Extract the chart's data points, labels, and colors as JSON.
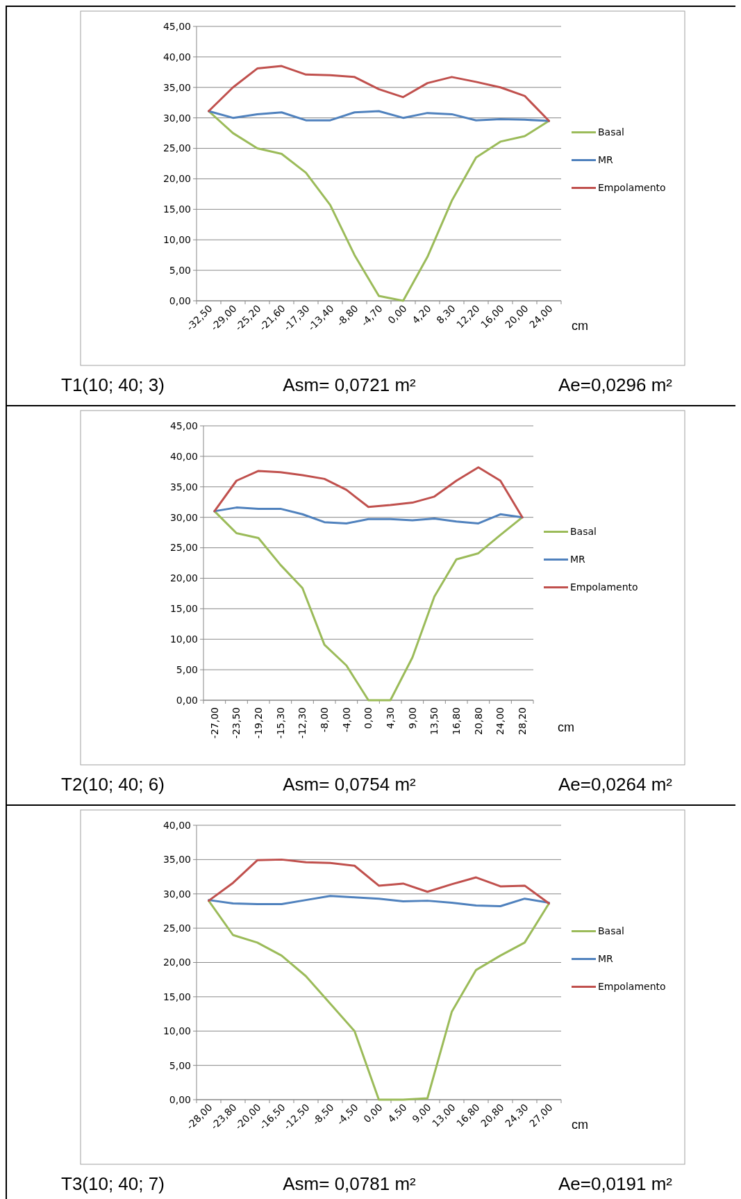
{
  "chart_data": [
    {
      "type": "line",
      "categories": [
        "-32,50",
        "-29,00",
        "-25,20",
        "-21,60",
        "-17,30",
        "-13,40",
        "-8,80",
        "-4,70",
        "0,00",
        "4,20",
        "8,30",
        "12,20",
        "16,00",
        "20,00",
        "24,00"
      ],
      "xlabel": "cm",
      "ylim": [
        0,
        45
      ],
      "yticks": [
        {
          "value": 0,
          "label": "0,00"
        },
        {
          "value": 5,
          "label": "5,00"
        },
        {
          "value": 10,
          "label": "10,00"
        },
        {
          "value": 15,
          "label": "15,00"
        },
        {
          "value": 20,
          "label": "20,00"
        },
        {
          "value": 25,
          "label": "25,00"
        },
        {
          "value": 30,
          "label": "30,00"
        },
        {
          "value": 35,
          "label": "35,00"
        },
        {
          "value": 40,
          "label": "40,00"
        },
        {
          "value": 45,
          "label": "45,00"
        }
      ],
      "grid": "y",
      "legend": "right",
      "marker": "none",
      "line_style": "solid",
      "series": [
        {
          "name": "Basal",
          "color": "#9bbb59",
          "values": [
            31.1,
            27.5,
            25.0,
            24.1,
            21.0,
            15.7,
            7.5,
            0.8,
            0.0,
            7.2,
            16.4,
            23.5,
            26.1,
            27.0,
            29.5
          ]
        },
        {
          "name": "MR",
          "color": "#4f81bd",
          "values": [
            31.1,
            30.0,
            30.6,
            30.9,
            29.6,
            29.6,
            30.9,
            31.1,
            30.0,
            30.8,
            30.6,
            29.6,
            29.8,
            29.7,
            29.5
          ]
        },
        {
          "name": "Empolamento",
          "color": "#c0504d",
          "values": [
            31.1,
            35.0,
            38.1,
            38.5,
            37.1,
            37.0,
            36.7,
            34.7,
            33.4,
            35.7,
            36.7,
            35.9,
            35.0,
            33.6,
            29.5
          ]
        }
      ],
      "annotations": [
        "T1(10; 40; 3)",
        "Asm= 0,0721 m²",
        "Ae=0,0296 m²"
      ]
    },
    {
      "type": "line",
      "categories": [
        "-27,00",
        "-23,50",
        "-19,20",
        "-15,30",
        "-12,30",
        "-8,00",
        "-4,00",
        "0,00",
        "4,30",
        "9,00",
        "13,50",
        "16,80",
        "20,80",
        "24,00",
        "28,20"
      ],
      "xlabel": "cm",
      "ylim": [
        0,
        45
      ],
      "yticks": [
        {
          "value": 0,
          "label": "0,00"
        },
        {
          "value": 5,
          "label": "5,00"
        },
        {
          "value": 10,
          "label": "10,00"
        },
        {
          "value": 15,
          "label": "15,00"
        },
        {
          "value": 20,
          "label": "20,00"
        },
        {
          "value": 25,
          "label": "25,00"
        },
        {
          "value": 30,
          "label": "30,00"
        },
        {
          "value": 35,
          "label": "35,00"
        },
        {
          "value": 40,
          "label": "40,00"
        },
        {
          "value": 45,
          "label": "45,00"
        }
      ],
      "grid": "y",
      "legend": "right",
      "marker": "none",
      "line_style": "solid",
      "series": [
        {
          "name": "Basal",
          "color": "#9bbb59",
          "values": [
            31.0,
            27.4,
            26.6,
            22.2,
            18.4,
            9.1,
            5.7,
            0.0,
            0.0,
            7.0,
            17.0,
            23.1,
            24.1,
            27.1,
            30.0
          ]
        },
        {
          "name": "MR",
          "color": "#4f81bd",
          "values": [
            31.0,
            31.6,
            31.4,
            31.4,
            30.5,
            29.2,
            29.0,
            29.7,
            29.7,
            29.5,
            29.8,
            29.3,
            29.0,
            30.5,
            30.0
          ]
        },
        {
          "name": "Empolamento",
          "color": "#c0504d",
          "values": [
            31.0,
            36.0,
            37.6,
            37.4,
            36.9,
            36.3,
            34.5,
            31.7,
            32.0,
            32.4,
            33.4,
            36.0,
            38.2,
            36.0,
            30.0
          ]
        }
      ],
      "annotations": [
        "T2(10; 40; 6)",
        "Asm= 0,0754 m²",
        "Ae=0,0264 m²"
      ]
    },
    {
      "type": "line",
      "categories": [
        "-28,00",
        "-23,80",
        "-20,00",
        "-16,50",
        "-12,50",
        "-8,50",
        "-4,50",
        "0,00",
        "4,50",
        "9,00",
        "13,00",
        "16,80",
        "20,80",
        "24,30",
        "27,00"
      ],
      "xlabel": "cm",
      "ylim": [
        0,
        40
      ],
      "yticks": [
        {
          "value": 0,
          "label": "0,00"
        },
        {
          "value": 5,
          "label": "5,00"
        },
        {
          "value": 10,
          "label": "10,00"
        },
        {
          "value": 15,
          "label": "15,00"
        },
        {
          "value": 20,
          "label": "20,00"
        },
        {
          "value": 25,
          "label": "25,00"
        },
        {
          "value": 30,
          "label": "30,00"
        },
        {
          "value": 35,
          "label": "35,00"
        },
        {
          "value": 40,
          "label": "40,00"
        }
      ],
      "grid": "y",
      "legend": "right",
      "marker": "none",
      "line_style": "solid",
      "series": [
        {
          "name": "Basal",
          "color": "#9bbb59",
          "values": [
            29.0,
            24.0,
            22.9,
            21.0,
            18.0,
            14.0,
            10.0,
            0.0,
            0.0,
            0.2,
            12.8,
            18.9,
            21.0,
            22.9,
            28.6
          ]
        },
        {
          "name": "MR",
          "color": "#4f81bd",
          "values": [
            29.1,
            28.6,
            28.5,
            28.5,
            29.1,
            29.7,
            29.5,
            29.3,
            28.9,
            29.0,
            28.7,
            28.3,
            28.2,
            29.3,
            28.7
          ]
        },
        {
          "name": "Empolamento",
          "color": "#c0504d",
          "values": [
            29.0,
            31.6,
            34.9,
            35.0,
            34.6,
            34.5,
            34.1,
            31.2,
            31.5,
            30.3,
            31.4,
            32.4,
            31.1,
            31.2,
            28.6
          ]
        }
      ],
      "annotations": [
        "T3(10; 40; 7)",
        "Asm= 0,0781 m²",
        "Ae=0,0191 m²"
      ]
    }
  ]
}
